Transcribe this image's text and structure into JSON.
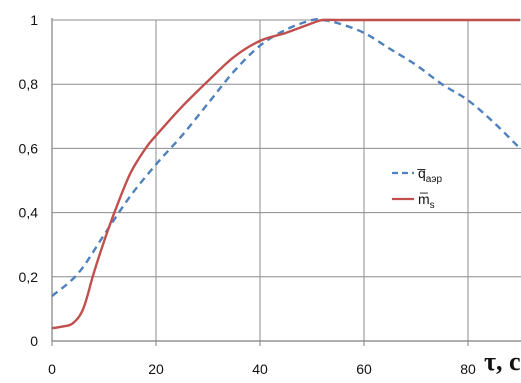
{
  "chart_data": {
    "type": "line",
    "title": "",
    "xlabel": "τ, c",
    "ylabel": "",
    "xlim": [
      0,
      90
    ],
    "ylim": [
      0,
      1
    ],
    "x_ticks": [
      "0",
      "20",
      "40",
      "60",
      "80"
    ],
    "y_ticks": [
      "0",
      "0,2",
      "0,4",
      "0,6",
      "0,8",
      "1"
    ],
    "grid": true,
    "legend_position": "right",
    "series": [
      {
        "name": "q̅",
        "name_sub": "аэр",
        "style": "dashed",
        "color": "#4F81BD",
        "x": [
          0,
          5,
          10,
          15,
          20,
          25,
          30,
          35,
          40,
          45,
          50,
          52,
          55,
          60,
          65,
          70,
          75,
          80,
          85,
          90
        ],
        "y": [
          0.14,
          0.21,
          0.33,
          0.45,
          0.55,
          0.64,
          0.74,
          0.84,
          0.92,
          0.97,
          1.0,
          1.0,
          0.99,
          0.96,
          0.91,
          0.86,
          0.8,
          0.75,
          0.68,
          0.6
        ]
      },
      {
        "name": "m̅",
        "name_sub": "s",
        "style": "solid",
        "color": "#C0504D",
        "x": [
          0,
          2,
          4,
          6,
          8,
          10,
          12,
          15,
          18,
          20,
          25,
          30,
          35,
          40,
          45,
          50,
          52,
          55,
          60,
          70,
          80,
          90
        ],
        "y": [
          0.04,
          0.045,
          0.055,
          0.1,
          0.21,
          0.31,
          0.4,
          0.52,
          0.6,
          0.64,
          0.73,
          0.81,
          0.885,
          0.935,
          0.96,
          0.99,
          1.0,
          1.0,
          1.0,
          1.0,
          1.0,
          1.0
        ]
      }
    ]
  },
  "legend": {
    "items": [
      {
        "label": "q̅",
        "sub": "аэр",
        "color": "#4F81BD",
        "style": "dashed"
      },
      {
        "label": "m̅",
        "sub": "s",
        "color": "#C0504D",
        "style": "solid"
      }
    ]
  }
}
